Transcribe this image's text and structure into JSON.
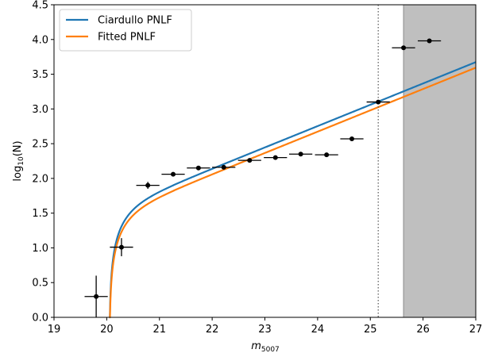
{
  "chart_data": {
    "type": "line",
    "xlim": [
      19,
      27
    ],
    "ylim": [
      0.0,
      4.5
    ],
    "x_ticks": [
      "19",
      "20",
      "21",
      "22",
      "23",
      "24",
      "25",
      "26",
      "27"
    ],
    "y_ticks": [
      "0.0",
      "0.5",
      "1.0",
      "1.5",
      "2.0",
      "2.5",
      "3.0",
      "3.5",
      "4.0",
      "4.5"
    ],
    "xlabel": {
      "main": "m",
      "sub": "5007"
    },
    "ylabel": {
      "main": "log",
      "sub": "10",
      "rest": "(N)"
    },
    "grid": false,
    "legend_position": "top-left",
    "series": [
      {
        "name": "Ciardullo PNLF",
        "color": "#1f77b4",
        "kind": "curve",
        "m_star": 20.05,
        "c2": 0.307,
        "offset": 3.06
      },
      {
        "name": "Fitted PNLF",
        "color": "#ff7f0e",
        "kind": "curve",
        "m_star": 20.05,
        "c2": 0.307,
        "offset": 2.98
      }
    ],
    "points": {
      "color": "#000000",
      "x": [
        19.8,
        20.28,
        20.78,
        21.26,
        21.74,
        22.22,
        22.71,
        23.2,
        23.68,
        24.17,
        24.65,
        25.15,
        25.63,
        26.12
      ],
      "y": [
        0.3,
        1.01,
        1.9,
        2.06,
        2.15,
        2.16,
        2.26,
        2.3,
        2.35,
        2.34,
        2.57,
        3.1,
        3.88,
        3.98
      ],
      "xerr": [
        0.22,
        0.22,
        0.22,
        0.22,
        0.22,
        0.22,
        0.22,
        0.22,
        0.22,
        0.22,
        0.22,
        0.22,
        0.22,
        0.22
      ],
      "yerr": [
        0.3,
        0.13,
        0.05,
        0.03,
        0.03,
        0.03,
        0.03,
        0.03,
        0.02,
        0.02,
        0.02,
        0.02,
        0.01,
        0.01
      ]
    },
    "completeness_line": {
      "x": 25.15,
      "color": "#555555"
    },
    "excluded_region": {
      "x_start": 25.63,
      "x_end": 27,
      "color": "#bfbfbf"
    }
  }
}
